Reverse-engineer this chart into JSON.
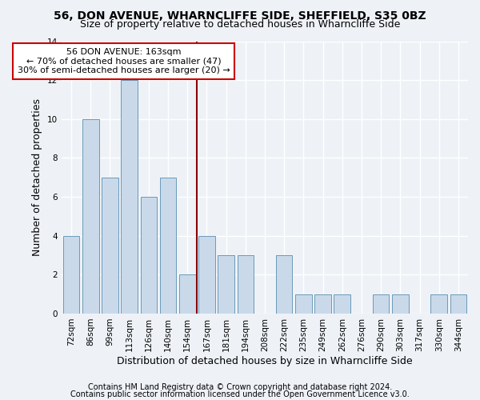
{
  "title": "56, DON AVENUE, WHARNCLIFFE SIDE, SHEFFIELD, S35 0BZ",
  "subtitle": "Size of property relative to detached houses in Wharncliffe Side",
  "xlabel": "Distribution of detached houses by size in Wharncliffe Side",
  "ylabel": "Number of detached properties",
  "categories": [
    "72sqm",
    "86sqm",
    "99sqm",
    "113sqm",
    "126sqm",
    "140sqm",
    "154sqm",
    "167sqm",
    "181sqm",
    "194sqm",
    "208sqm",
    "222sqm",
    "235sqm",
    "249sqm",
    "262sqm",
    "276sqm",
    "290sqm",
    "303sqm",
    "317sqm",
    "330sqm",
    "344sqm"
  ],
  "values": [
    4,
    10,
    7,
    12,
    6,
    7,
    2,
    4,
    3,
    3,
    0,
    3,
    1,
    1,
    1,
    0,
    1,
    1,
    0,
    1,
    1
  ],
  "bar_color": "#c9d9ea",
  "bar_edge_color": "#6a9ab8",
  "vline_color": "#8b0000",
  "annotation_text": "56 DON AVENUE: 163sqm\n← 70% of detached houses are smaller (47)\n30% of semi-detached houses are larger (20) →",
  "annotation_box_facecolor": "#ffffff",
  "annotation_box_edgecolor": "#cc0000",
  "ylim": [
    0,
    14
  ],
  "yticks": [
    0,
    2,
    4,
    6,
    8,
    10,
    12,
    14
  ],
  "footnote1": "Contains HM Land Registry data © Crown copyright and database right 2024.",
  "footnote2": "Contains public sector information licensed under the Open Government Licence v3.0.",
  "background_color": "#eef2f7",
  "grid_color": "#ffffff",
  "title_fontsize": 10,
  "subtitle_fontsize": 9,
  "ylabel_fontsize": 9,
  "xlabel_fontsize": 9,
  "tick_fontsize": 7.5,
  "annotation_fontsize": 8,
  "footnote_fontsize": 7
}
